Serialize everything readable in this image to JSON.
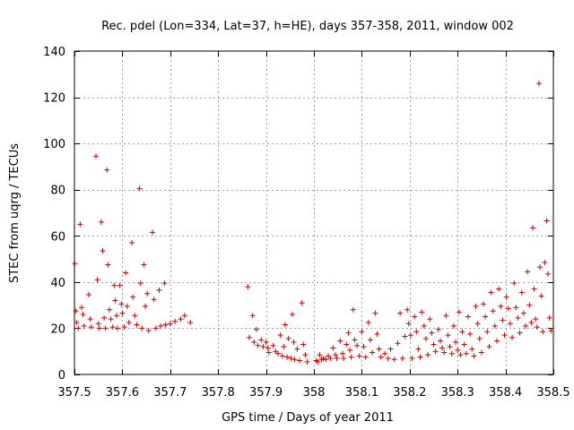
{
  "chart_data": {
    "type": "scatter",
    "title": "Rec. pdel (Lon=334, Lat=37, h=HE), days 357-358, 2011, window 002",
    "xlabel": "GPS time / Days of year 2011",
    "ylabel": "STEC from uqrg / TECUs",
    "xlim": [
      357.5,
      358.5
    ],
    "ylim": [
      0,
      140
    ],
    "x_ticks": [
      357.5,
      357.6,
      357.7,
      357.8,
      357.9,
      358.0,
      358.1,
      358.2,
      358.3,
      358.4,
      358.5
    ],
    "x_tick_labels": [
      "357.5",
      "357.6",
      "357.7",
      "357.8",
      "357.9",
      "358",
      "358.1",
      "358.2",
      "358.3",
      "358.4",
      "358.5"
    ],
    "y_ticks": [
      0,
      20,
      40,
      60,
      80,
      100,
      120,
      140
    ],
    "y_tick_labels": [
      "0",
      "20",
      "40",
      "60",
      "80",
      "100",
      "120",
      "140"
    ],
    "grid": true,
    "marker": "+",
    "color": "#cc0000",
    "points": [
      [
        357.501,
        48.0
      ],
      [
        357.503,
        27.5
      ],
      [
        357.505,
        22.5
      ],
      [
        357.508,
        20.0
      ],
      [
        357.512,
        65.0
      ],
      [
        357.515,
        29.0
      ],
      [
        357.518,
        26.0
      ],
      [
        357.52,
        21.0
      ],
      [
        357.53,
        34.5
      ],
      [
        357.533,
        24.0
      ],
      [
        357.535,
        20.5
      ],
      [
        357.545,
        94.5
      ],
      [
        357.548,
        41.0
      ],
      [
        357.55,
        22.0
      ],
      [
        357.552,
        20.0
      ],
      [
        357.556,
        66.0
      ],
      [
        357.559,
        53.5
      ],
      [
        357.562,
        24.5
      ],
      [
        357.565,
        20.0
      ],
      [
        357.568,
        88.5
      ],
      [
        357.57,
        47.5
      ],
      [
        357.573,
        28.0
      ],
      [
        357.576,
        24.0
      ],
      [
        357.58,
        20.5
      ],
      [
        357.583,
        38.5
      ],
      [
        357.585,
        32.0
      ],
      [
        357.588,
        25.5
      ],
      [
        357.59,
        20.0
      ],
      [
        357.595,
        38.5
      ],
      [
        357.598,
        30.5
      ],
      [
        357.6,
        26.5
      ],
      [
        357.604,
        20.5
      ],
      [
        357.607,
        44.0
      ],
      [
        357.61,
        29.5
      ],
      [
        357.614,
        22.5
      ],
      [
        357.62,
        57.0
      ],
      [
        357.622,
        33.5
      ],
      [
        357.626,
        25.5
      ],
      [
        357.63,
        21.5
      ],
      [
        357.636,
        80.5
      ],
      [
        357.638,
        39.5
      ],
      [
        357.641,
        20.0
      ],
      [
        357.645,
        47.5
      ],
      [
        357.648,
        29.5
      ],
      [
        357.652,
        35.0
      ],
      [
        357.655,
        19.0
      ],
      [
        357.663,
        61.5
      ],
      [
        357.666,
        32.5
      ],
      [
        357.67,
        20.0
      ],
      [
        357.677,
        36.5
      ],
      [
        357.68,
        21.0
      ],
      [
        357.688,
        39.5
      ],
      [
        357.69,
        21.5
      ],
      [
        357.7,
        22.0
      ],
      [
        357.71,
        23.0
      ],
      [
        357.722,
        24.0
      ],
      [
        357.73,
        25.5
      ],
      [
        357.742,
        22.5
      ],
      [
        357.862,
        38.0
      ],
      [
        357.865,
        16.0
      ],
      [
        357.872,
        25.5
      ],
      [
        357.875,
        14.0
      ],
      [
        357.88,
        19.5
      ],
      [
        357.883,
        12.5
      ],
      [
        357.89,
        15.0
      ],
      [
        357.894,
        12.0
      ],
      [
        357.9,
        14.0
      ],
      [
        357.904,
        11.5
      ],
      [
        357.906,
        9.5
      ],
      [
        357.915,
        12.5
      ],
      [
        357.92,
        10.0
      ],
      [
        357.925,
        9.0
      ],
      [
        357.93,
        17.0
      ],
      [
        357.934,
        8.0
      ],
      [
        357.937,
        12.0
      ],
      [
        357.94,
        21.5
      ],
      [
        357.944,
        7.5
      ],
      [
        357.947,
        15.5
      ],
      [
        357.952,
        7.0
      ],
      [
        357.955,
        26.0
      ],
      [
        357.958,
        14.0
      ],
      [
        357.96,
        6.5
      ],
      [
        357.965,
        11.0
      ],
      [
        357.97,
        6.0
      ],
      [
        357.975,
        31.0
      ],
      [
        357.978,
        13.0
      ],
      [
        357.982,
        8.5
      ],
      [
        357.986,
        5.5
      ],
      [
        358.005,
        6.0
      ],
      [
        358.008,
        5.5
      ],
      [
        358.012,
        8.5
      ],
      [
        358.016,
        6.5
      ],
      [
        358.02,
        7.0
      ],
      [
        358.025,
        6.5
      ],
      [
        358.03,
        8.0
      ],
      [
        358.035,
        7.0
      ],
      [
        358.04,
        11.5
      ],
      [
        358.045,
        8.5
      ],
      [
        358.048,
        7.0
      ],
      [
        358.055,
        14.5
      ],
      [
        358.06,
        9.0
      ],
      [
        358.062,
        7.0
      ],
      [
        358.068,
        13.0
      ],
      [
        358.072,
        18.0
      ],
      [
        358.075,
        10.5
      ],
      [
        358.078,
        7.5
      ],
      [
        358.082,
        28.0
      ],
      [
        358.085,
        15.0
      ],
      [
        358.09,
        12.5
      ],
      [
        358.095,
        8.0
      ],
      [
        358.1,
        18.5
      ],
      [
        358.104,
        12.0
      ],
      [
        358.108,
        7.5
      ],
      [
        358.114,
        22.5
      ],
      [
        358.118,
        15.0
      ],
      [
        358.122,
        9.5
      ],
      [
        358.128,
        26.5
      ],
      [
        358.132,
        17.5
      ],
      [
        358.136,
        11.0
      ],
      [
        358.14,
        7.5
      ],
      [
        358.148,
        9.0
      ],
      [
        358.155,
        7.0
      ],
      [
        358.16,
        11.0
      ],
      [
        358.168,
        6.5
      ],
      [
        358.175,
        13.5
      ],
      [
        358.18,
        26.5
      ],
      [
        358.185,
        7.0
      ],
      [
        358.19,
        16.5
      ],
      [
        358.195,
        28.0
      ],
      [
        358.198,
        22.0
      ],
      [
        358.202,
        17.0
      ],
      [
        358.205,
        7.0
      ],
      [
        358.21,
        25.0
      ],
      [
        358.214,
        18.5
      ],
      [
        358.218,
        11.0
      ],
      [
        358.222,
        7.5
      ],
      [
        358.225,
        27.0
      ],
      [
        358.23,
        21.0
      ],
      [
        358.234,
        15.5
      ],
      [
        358.238,
        8.5
      ],
      [
        358.242,
        24.0
      ],
      [
        358.246,
        18.0
      ],
      [
        358.25,
        13.0
      ],
      [
        358.254,
        10.0
      ],
      [
        358.26,
        19.5
      ],
      [
        358.264,
        14.5
      ],
      [
        358.268,
        11.5
      ],
      [
        358.272,
        9.5
      ],
      [
        358.276,
        25.5
      ],
      [
        358.28,
        17.0
      ],
      [
        358.284,
        12.0
      ],
      [
        358.288,
        9.0
      ],
      [
        358.292,
        21.0
      ],
      [
        358.296,
        14.0
      ],
      [
        358.3,
        10.5
      ],
      [
        358.303,
        27.0
      ],
      [
        358.306,
        8.5
      ],
      [
        358.31,
        18.5
      ],
      [
        358.314,
        13.0
      ],
      [
        358.318,
        9.0
      ],
      [
        358.322,
        25.0
      ],
      [
        358.326,
        17.5
      ],
      [
        358.33,
        11.0
      ],
      [
        358.334,
        8.0
      ],
      [
        358.338,
        29.5
      ],
      [
        358.342,
        22.0
      ],
      [
        358.346,
        15.5
      ],
      [
        358.35,
        9.5
      ],
      [
        358.354,
        30.5
      ],
      [
        358.358,
        25.0
      ],
      [
        358.362,
        18.5
      ],
      [
        358.366,
        12.0
      ],
      [
        358.37,
        35.5
      ],
      [
        358.374,
        27.5
      ],
      [
        358.378,
        21.0
      ],
      [
        358.382,
        14.5
      ],
      [
        358.386,
        37.0
      ],
      [
        358.39,
        29.5
      ],
      [
        358.394,
        23.5
      ],
      [
        358.398,
        17.0
      ],
      [
        358.402,
        33.5
      ],
      [
        358.406,
        28.5
      ],
      [
        358.41,
        22.0
      ],
      [
        358.414,
        16.0
      ],
      [
        358.418,
        39.5
      ],
      [
        358.422,
        29.0
      ],
      [
        358.426,
        24.5
      ],
      [
        358.43,
        18.0
      ],
      [
        358.434,
        35.5
      ],
      [
        358.438,
        26.5
      ],
      [
        358.442,
        21.0
      ],
      [
        358.446,
        44.5
      ],
      [
        358.45,
        30.0
      ],
      [
        358.454,
        22.5
      ],
      [
        358.457,
        63.5
      ],
      [
        358.46,
        37.0
      ],
      [
        358.463,
        24.0
      ],
      [
        358.466,
        20.5
      ],
      [
        358.47,
        126.0
      ],
      [
        358.472,
        46.5
      ],
      [
        358.475,
        34.0
      ],
      [
        358.478,
        18.5
      ],
      [
        358.482,
        48.5
      ],
      [
        358.486,
        66.5
      ],
      [
        358.489,
        43.5
      ],
      [
        358.492,
        24.5
      ],
      [
        358.495,
        19.0
      ]
    ]
  }
}
